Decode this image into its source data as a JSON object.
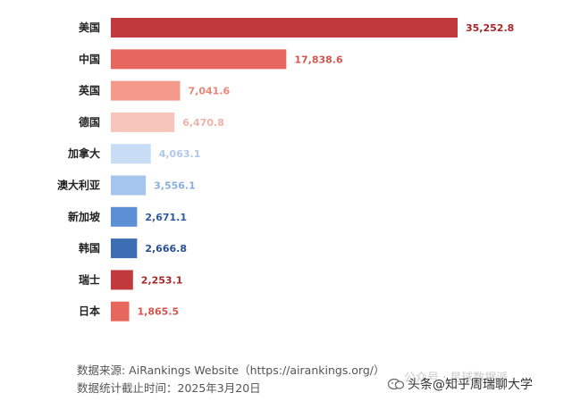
{
  "chart_data": {
    "type": "bar",
    "orientation": "horizontal",
    "categories": [
      "美国",
      "中国",
      "英国",
      "德国",
      "加拿大",
      "澳大利亚",
      "新加坡",
      "韩国",
      "瑞士",
      "日本"
    ],
    "values": [
      35252.8,
      17838.6,
      7041.6,
      6470.8,
      4063.1,
      3556.1,
      2671.1,
      2666.8,
      2253.1,
      1865.5
    ],
    "value_labels": [
      "35,252.8",
      "17,838.6",
      "7,041.6",
      "6,470.8",
      "4,063.1",
      "3,556.1",
      "2,671.1",
      "2,666.8",
      "2,253.1",
      "1,865.5"
    ],
    "bar_colors": [
      "#c0393c",
      "#e5675d",
      "#f39a8b",
      "#f6c5bc",
      "#c8dcf5",
      "#a4c5ee",
      "#5c8fd6",
      "#3d6db3",
      "#c0393c",
      "#e5675d"
    ],
    "label_colors": [
      "#a8272b",
      "#d4564e",
      "#e88778",
      "#eeb3aa",
      "#b0c8e6",
      "#8aaedd",
      "#2f5aa0",
      "#2b4f8e",
      "#a8272b",
      "#d4564e"
    ],
    "xlim": [
      0,
      35252.8
    ],
    "grid": false,
    "legend": "none",
    "title": "",
    "xlabel": "",
    "ylabel": ""
  },
  "footer": {
    "source": "数据来源: AiRankings Website（https://airankings.org/）",
    "date": "数据统计截止时间：2025年3月20日"
  },
  "watermark": {
    "faint": "公众号 · 星球数据派",
    "text": "头条@知乎周瑞聊大学",
    "icon": "toutiao-logo-icon"
  }
}
